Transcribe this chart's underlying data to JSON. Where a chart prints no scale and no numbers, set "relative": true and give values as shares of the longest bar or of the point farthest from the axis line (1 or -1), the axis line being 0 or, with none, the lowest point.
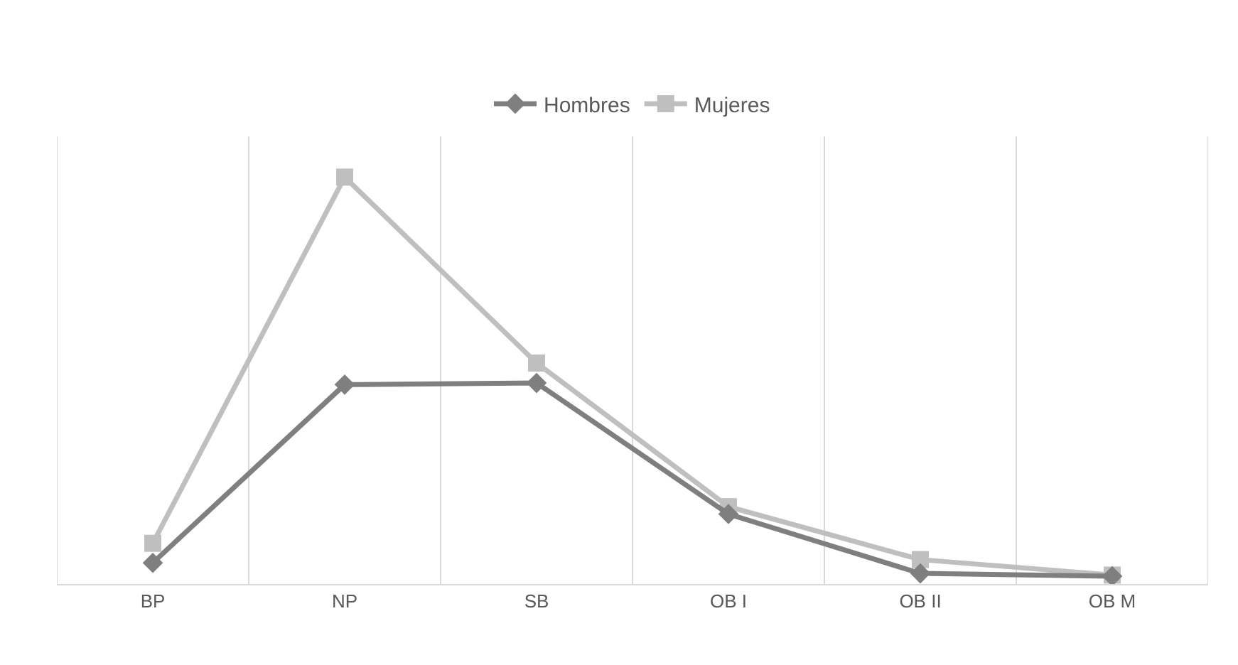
{
  "chart_data": {
    "type": "line",
    "relative": true,
    "categories": [
      "BP",
      "NP",
      "SB",
      "OB I",
      "OB II",
      "OB M"
    ],
    "series": [
      {
        "name": "Hombres",
        "color": "#7f7f7f",
        "marker": "diamond",
        "values": [
          0.052,
          0.49,
          0.494,
          0.172,
          0.026,
          0.019
        ]
      },
      {
        "name": "Mujeres",
        "color": "#bfbfbf",
        "marker": "square",
        "values": [
          0.1,
          1,
          0.543,
          0.19,
          0.06,
          0.022
        ]
      }
    ],
    "grid": "x",
    "legend": "top",
    "line_style": "solid"
  }
}
